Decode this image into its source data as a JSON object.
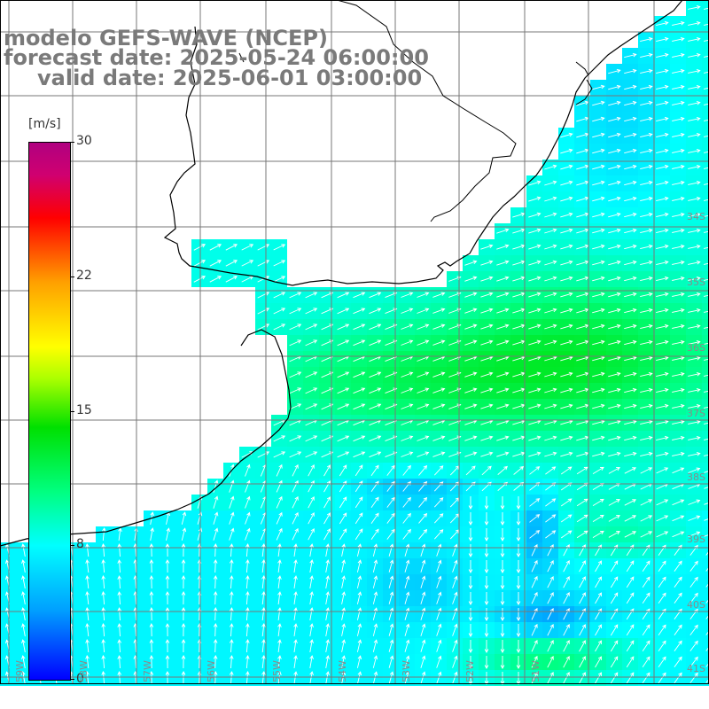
{
  "title": {
    "line1": "modelo GEFS-WAVE (NCEP)",
    "line2": "forecast date: 2025-05-24 06:00:00",
    "line3": "valid date: 2025-06-01 03:00:00"
  },
  "colorbar": {
    "unit": "[m/s]",
    "ticks": [
      "30",
      "22",
      "15",
      "8",
      "0"
    ],
    "min": 0,
    "max": 30,
    "colors": [
      "#0000ff",
      "#00a0ff",
      "#00ffff",
      "#00ff80",
      "#00e000",
      "#aaff00",
      "#ffff00",
      "#ffa000",
      "#ff0000",
      "#d00070",
      "#b00080"
    ]
  },
  "lat_labels": [
    "34S",
    "35S",
    "36S",
    "37S",
    "38S",
    "39S",
    "40S",
    "41S"
  ],
  "lon_labels": [
    "59W",
    "58W",
    "57W",
    "56W",
    "55W",
    "54W",
    "53W",
    "52W",
    "51W"
  ],
  "colors": {
    "land": "#ffffff",
    "coast": "#000000",
    "grid": "#777777",
    "arrows": "#ffffff",
    "title": "#7a7a7a"
  }
}
